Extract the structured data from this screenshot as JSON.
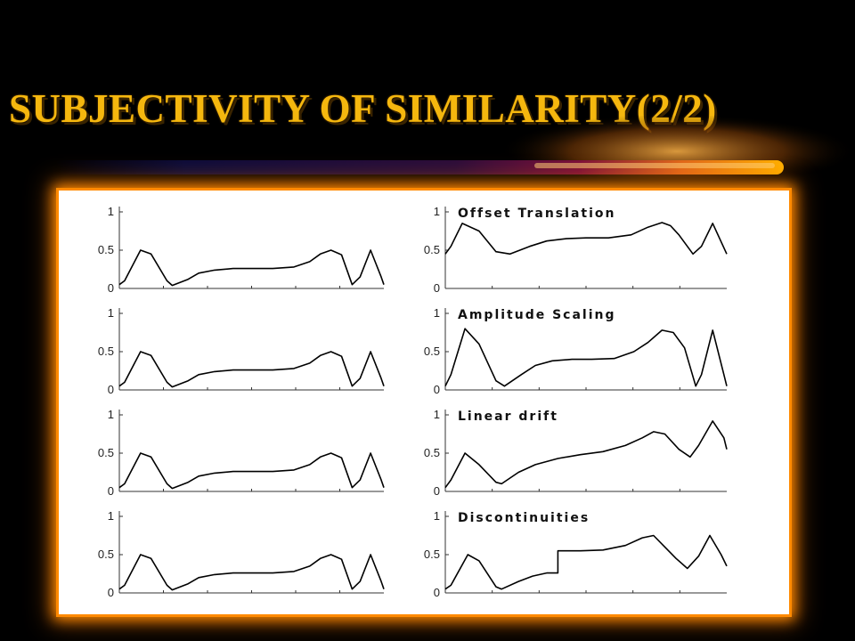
{
  "slide": {
    "title": "SUBJECTIVITY OF SIMILARITY(2/2)"
  },
  "colors": {
    "background": "#000000",
    "title": "#f5b70e",
    "swoosh_start": "#0b0b3a",
    "swoosh_mid": "#7a0f3a",
    "swoosh_end": "#ffb000",
    "figure_background": "#ffffff",
    "figure_glow": "#ff8a00",
    "line": "#000000"
  },
  "chart_data": [
    {
      "type": "line",
      "panel": "left-1",
      "title": "",
      "yticks": [
        "0",
        "0.5",
        "1"
      ],
      "ylim": [
        0,
        1
      ],
      "xlim": [
        0,
        1
      ],
      "series": [
        {
          "x": [
            0,
            0.02,
            0.08,
            0.12,
            0.18,
            0.2,
            0.26,
            0.3,
            0.36,
            0.43,
            0.5,
            0.58,
            0.66,
            0.72,
            0.76,
            0.8,
            0.84,
            0.88,
            0.91,
            0.95,
            0.99,
            1.0
          ],
          "values": [
            0.05,
            0.1,
            0.5,
            0.45,
            0.1,
            0.04,
            0.12,
            0.2,
            0.24,
            0.26,
            0.26,
            0.26,
            0.28,
            0.35,
            0.45,
            0.5,
            0.44,
            0.05,
            0.15,
            0.5,
            0.15,
            0.05
          ]
        }
      ]
    },
    {
      "type": "line",
      "panel": "right-1",
      "title": "Offset Translation",
      "yticks": [
        "0",
        "0.5",
        "1"
      ],
      "ylim": [
        0,
        1
      ],
      "xlim": [
        0,
        1
      ],
      "series": [
        {
          "x": [
            0,
            0.02,
            0.06,
            0.12,
            0.18,
            0.23,
            0.3,
            0.36,
            0.43,
            0.5,
            0.58,
            0.66,
            0.72,
            0.77,
            0.8,
            0.83,
            0.88,
            0.91,
            0.95,
            1.0
          ],
          "values": [
            0.45,
            0.55,
            0.85,
            0.75,
            0.48,
            0.45,
            0.55,
            0.62,
            0.65,
            0.66,
            0.66,
            0.7,
            0.8,
            0.86,
            0.82,
            0.7,
            0.45,
            0.55,
            0.85,
            0.45
          ]
        }
      ]
    },
    {
      "type": "line",
      "panel": "left-2",
      "title": "",
      "yticks": [
        "0",
        "0.5",
        "1"
      ],
      "ylim": [
        0,
        1
      ],
      "xlim": [
        0,
        1
      ],
      "series": [
        {
          "x": [
            0,
            0.02,
            0.08,
            0.12,
            0.18,
            0.2,
            0.26,
            0.3,
            0.36,
            0.43,
            0.5,
            0.58,
            0.66,
            0.72,
            0.76,
            0.8,
            0.84,
            0.88,
            0.91,
            0.95,
            0.99,
            1.0
          ],
          "values": [
            0.05,
            0.1,
            0.5,
            0.45,
            0.1,
            0.04,
            0.12,
            0.2,
            0.24,
            0.26,
            0.26,
            0.26,
            0.28,
            0.35,
            0.45,
            0.5,
            0.44,
            0.05,
            0.15,
            0.5,
            0.15,
            0.05
          ]
        }
      ]
    },
    {
      "type": "line",
      "panel": "right-2",
      "title": "Amplitude Scaling",
      "yticks": [
        "0",
        "0.5",
        "1"
      ],
      "ylim": [
        0,
        1
      ],
      "xlim": [
        0,
        1
      ],
      "series": [
        {
          "x": [
            0,
            0.02,
            0.07,
            0.12,
            0.18,
            0.21,
            0.27,
            0.32,
            0.38,
            0.45,
            0.52,
            0.6,
            0.67,
            0.72,
            0.77,
            0.81,
            0.85,
            0.89,
            0.91,
            0.95,
            0.99,
            1.0
          ],
          "values": [
            0.05,
            0.2,
            0.8,
            0.6,
            0.12,
            0.05,
            0.2,
            0.32,
            0.38,
            0.4,
            0.4,
            0.41,
            0.5,
            0.62,
            0.78,
            0.75,
            0.55,
            0.05,
            0.2,
            0.78,
            0.2,
            0.05
          ]
        }
      ]
    },
    {
      "type": "line",
      "panel": "left-3",
      "title": "",
      "yticks": [
        "0",
        "0.5",
        "1"
      ],
      "ylim": [
        0,
        1
      ],
      "xlim": [
        0,
        1
      ],
      "series": [
        {
          "x": [
            0,
            0.02,
            0.08,
            0.12,
            0.18,
            0.2,
            0.26,
            0.3,
            0.36,
            0.43,
            0.5,
            0.58,
            0.66,
            0.72,
            0.76,
            0.8,
            0.84,
            0.88,
            0.91,
            0.95,
            0.99,
            1.0
          ],
          "values": [
            0.05,
            0.1,
            0.5,
            0.45,
            0.1,
            0.04,
            0.12,
            0.2,
            0.24,
            0.26,
            0.26,
            0.26,
            0.28,
            0.35,
            0.45,
            0.5,
            0.44,
            0.05,
            0.15,
            0.5,
            0.15,
            0.05
          ]
        }
      ]
    },
    {
      "type": "line",
      "panel": "right-3",
      "title": "Linear drift",
      "yticks": [
        "0",
        "0.5",
        "1"
      ],
      "ylim": [
        0,
        1
      ],
      "xlim": [
        0,
        1
      ],
      "series": [
        {
          "x": [
            0,
            0.02,
            0.07,
            0.12,
            0.18,
            0.2,
            0.26,
            0.32,
            0.4,
            0.48,
            0.56,
            0.64,
            0.7,
            0.74,
            0.78,
            0.83,
            0.87,
            0.9,
            0.95,
            0.99,
            1.0
          ],
          "values": [
            0.05,
            0.15,
            0.5,
            0.35,
            0.12,
            0.1,
            0.25,
            0.35,
            0.43,
            0.48,
            0.52,
            0.6,
            0.7,
            0.78,
            0.75,
            0.55,
            0.45,
            0.6,
            0.92,
            0.7,
            0.55
          ]
        }
      ]
    },
    {
      "type": "line",
      "panel": "left-4",
      "title": "",
      "yticks": [
        "0",
        "0.5",
        "1"
      ],
      "ylim": [
        0,
        1
      ],
      "xlim": [
        0,
        1
      ],
      "series": [
        {
          "x": [
            0,
            0.02,
            0.08,
            0.12,
            0.18,
            0.2,
            0.26,
            0.3,
            0.36,
            0.43,
            0.5,
            0.58,
            0.66,
            0.72,
            0.76,
            0.8,
            0.84,
            0.88,
            0.91,
            0.95,
            0.99,
            1.0
          ],
          "values": [
            0.05,
            0.1,
            0.5,
            0.45,
            0.1,
            0.04,
            0.12,
            0.2,
            0.24,
            0.26,
            0.26,
            0.26,
            0.28,
            0.35,
            0.45,
            0.5,
            0.44,
            0.05,
            0.15,
            0.5,
            0.15,
            0.05
          ]
        }
      ]
    },
    {
      "type": "line",
      "panel": "right-4",
      "title": "Discontinuities",
      "yticks": [
        "0",
        "0.5",
        "1"
      ],
      "ylim": [
        0,
        1
      ],
      "xlim": [
        0,
        1
      ],
      "series": [
        {
          "x": [
            0,
            0.02,
            0.08,
            0.12,
            0.18,
            0.2,
            0.26,
            0.31,
            0.36,
            0.4,
            0.4,
            0.48,
            0.56,
            0.64,
            0.7,
            0.74,
            0.78,
            0.82,
            0.86,
            0.9,
            0.94,
            0.98,
            1.0
          ],
          "values": [
            0.05,
            0.1,
            0.5,
            0.42,
            0.08,
            0.05,
            0.15,
            0.22,
            0.26,
            0.26,
            0.55,
            0.55,
            0.56,
            0.62,
            0.72,
            0.75,
            0.6,
            0.45,
            0.32,
            0.48,
            0.75,
            0.5,
            0.35
          ]
        }
      ]
    }
  ]
}
